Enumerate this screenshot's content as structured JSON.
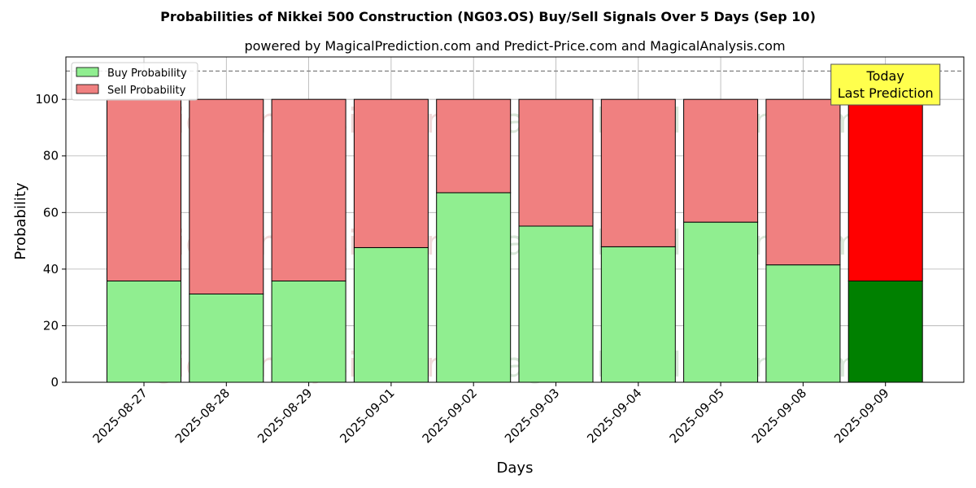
{
  "chart_data": {
    "type": "bar",
    "stacked": true,
    "title": "Probabilities of Nikkei 500 Construction (NG03.OS) Buy/Sell Signals Over 5 Days (Sep 10)",
    "subtitle": "powered by MagicalPrediction.com and Predict-Price.com and MagicalAnalysis.com",
    "xlabel": "Days",
    "ylabel": "Probability",
    "ylim": [
      0,
      115
    ],
    "yticks": [
      0,
      20,
      40,
      60,
      80,
      100
    ],
    "grid": true,
    "legend_position": "top-left",
    "categories": [
      "2025-08-27",
      "2025-08-28",
      "2025-08-29",
      "2025-09-01",
      "2025-09-02",
      "2025-09-03",
      "2025-09-04",
      "2025-09-05",
      "2025-09-08",
      "2025-09-09"
    ],
    "series": [
      {
        "name": "Buy Probability",
        "color": "#90ee90",
        "highlight_color": "#008000",
        "values": [
          35.8,
          31.2,
          35.8,
          47.6,
          67.0,
          55.2,
          47.9,
          56.6,
          41.5,
          35.8
        ]
      },
      {
        "name": "Sell Probability",
        "color": "#f08080",
        "highlight_color": "#ff0000",
        "values": [
          64.2,
          68.8,
          64.2,
          52.4,
          33.0,
          44.8,
          52.1,
          43.4,
          58.5,
          64.2
        ]
      }
    ],
    "reference_line": {
      "y": 110,
      "style": "dashed",
      "color": "#808080"
    },
    "annotation": {
      "lines": [
        "Today",
        "Last Prediction"
      ],
      "category_index": 9,
      "background": "#ffff4d"
    },
    "watermarks": [
      "MagicalAnalysis.com",
      "MagicalPrediction.com"
    ]
  }
}
